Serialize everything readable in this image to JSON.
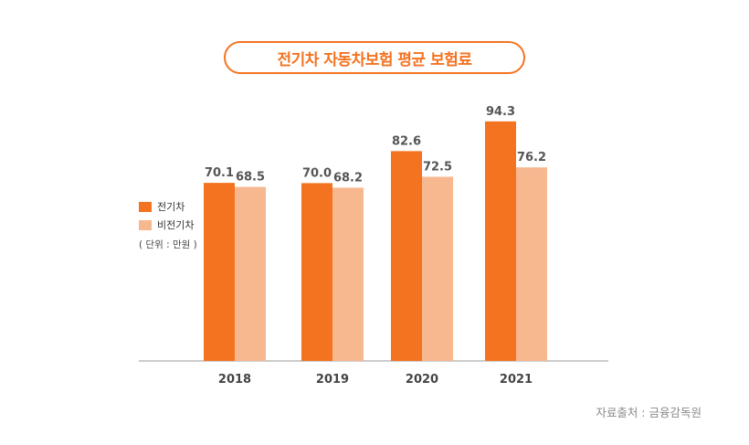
{
  "chart_data": {
    "type": "bar",
    "title": "전기차 자동차보험 평균 보험료",
    "categories": [
      "2018",
      "2019",
      "2020",
      "2021"
    ],
    "series": [
      {
        "name": "전기차",
        "values": [
          70.1,
          70.0,
          82.6,
          94.3
        ],
        "value_labels": [
          "70.1",
          "70.0",
          "82.6",
          "94.3"
        ],
        "color": "#f47321"
      },
      {
        "name": "비전기차",
        "values": [
          68.5,
          68.2,
          72.5,
          76.2
        ],
        "value_labels": [
          "68.5",
          "68.2",
          "72.5",
          "76.2"
        ],
        "color": "#f8b88f"
      }
    ],
    "unit": "( 단위 : 만원 )",
    "xlabel": "",
    "ylabel": "",
    "ylim": [
      0,
      100
    ],
    "legend_position": "left"
  },
  "source": "자료출처 : 금융감독원"
}
